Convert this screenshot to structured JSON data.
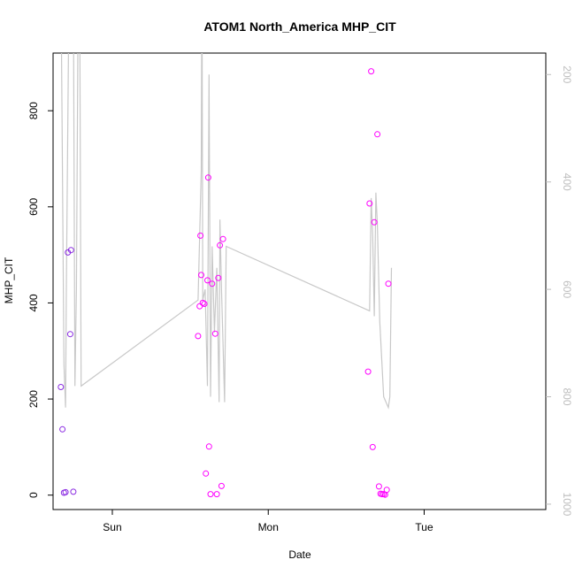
{
  "chart_data": {
    "type": "scatter",
    "title": "ATOM1 North_America MHP_CIT",
    "xlabel": "Date",
    "ylabel": "MHP_CIT",
    "x_domain": [
      -0.38,
      2.78
    ],
    "x_ticks": [
      {
        "value": 0,
        "label": "Sun"
      },
      {
        "value": 1,
        "label": "Mon"
      },
      {
        "value": 2,
        "label": "Tue"
      }
    ],
    "ylim": [
      -30,
      920
    ],
    "y_ticks": [
      0,
      200,
      400,
      600,
      800
    ],
    "right_axis": {
      "ylim": [
        1010,
        160
      ],
      "ticks": [
        200,
        400,
        600,
        800,
        1000
      ],
      "color": "#bdbdbd"
    },
    "colors": {
      "line": "#c8c8c8",
      "points_early": "#8a2be2",
      "points_late": "#ff00ff",
      "axis": "#000000"
    },
    "series": [
      {
        "kind": "line",
        "axis": "right",
        "points": [
          [
            -0.33,
            0
          ],
          [
            -0.31,
            740
          ],
          [
            -0.3,
            820
          ],
          [
            -0.295,
            600
          ],
          [
            -0.28,
            120
          ],
          [
            -0.27,
            0
          ],
          [
            -0.25,
            20
          ],
          [
            -0.24,
            780
          ],
          [
            -0.23,
            600
          ],
          [
            -0.22,
            100
          ],
          [
            -0.21,
            0
          ],
          [
            -0.2,
            780
          ],
          [
            0.55,
            620
          ],
          [
            0.57,
            380
          ],
          [
            0.575,
            0
          ],
          [
            0.58,
            620
          ],
          [
            0.595,
            600
          ],
          [
            0.61,
            780
          ],
          [
            0.62,
            200
          ],
          [
            0.63,
            800
          ],
          [
            0.64,
            520
          ],
          [
            0.655,
            680
          ],
          [
            0.67,
            560
          ],
          [
            0.685,
            810
          ],
          [
            0.69,
            470
          ],
          [
            0.7,
            600
          ],
          [
            0.71,
            700
          ],
          [
            0.72,
            810
          ],
          [
            0.73,
            520
          ],
          [
            1.65,
            640
          ],
          [
            1.66,
            430
          ],
          [
            1.67,
            500
          ],
          [
            1.68,
            650
          ],
          [
            1.69,
            420
          ],
          [
            1.7,
            480
          ],
          [
            1.715,
            660
          ],
          [
            1.74,
            800
          ],
          [
            1.77,
            820
          ],
          [
            1.78,
            800
          ],
          [
            1.79,
            560
          ]
        ]
      },
      {
        "kind": "points",
        "axis": "left",
        "color": "#8a2be2",
        "points": [
          [
            -0.33,
            225
          ],
          [
            -0.32,
            137
          ],
          [
            -0.31,
            5
          ],
          [
            -0.3,
            6
          ],
          [
            -0.285,
            505
          ],
          [
            -0.27,
            335
          ],
          [
            -0.265,
            510
          ],
          [
            -0.25,
            7
          ]
        ]
      },
      {
        "kind": "points",
        "axis": "left",
        "color": "#ff00ff",
        "points": [
          [
            0.55,
            331
          ],
          [
            0.56,
            393
          ],
          [
            0.565,
            540
          ],
          [
            0.57,
            458
          ],
          [
            0.58,
            400
          ],
          [
            0.59,
            398
          ],
          [
            0.6,
            45
          ],
          [
            0.61,
            447
          ],
          [
            0.615,
            661
          ],
          [
            0.62,
            101
          ],
          [
            0.63,
            2
          ],
          [
            0.64,
            440
          ],
          [
            0.66,
            336
          ],
          [
            0.67,
            2
          ],
          [
            0.68,
            452
          ],
          [
            0.69,
            520
          ],
          [
            0.7,
            19
          ],
          [
            0.71,
            533
          ],
          [
            1.64,
            257
          ],
          [
            1.65,
            607
          ],
          [
            1.66,
            882
          ],
          [
            1.67,
            100
          ],
          [
            1.68,
            568
          ],
          [
            1.7,
            751
          ],
          [
            1.71,
            18
          ],
          [
            1.72,
            3
          ],
          [
            1.73,
            2
          ],
          [
            1.74,
            2
          ],
          [
            1.75,
            1
          ],
          [
            1.76,
            11
          ],
          [
            1.77,
            440
          ]
        ]
      }
    ]
  }
}
